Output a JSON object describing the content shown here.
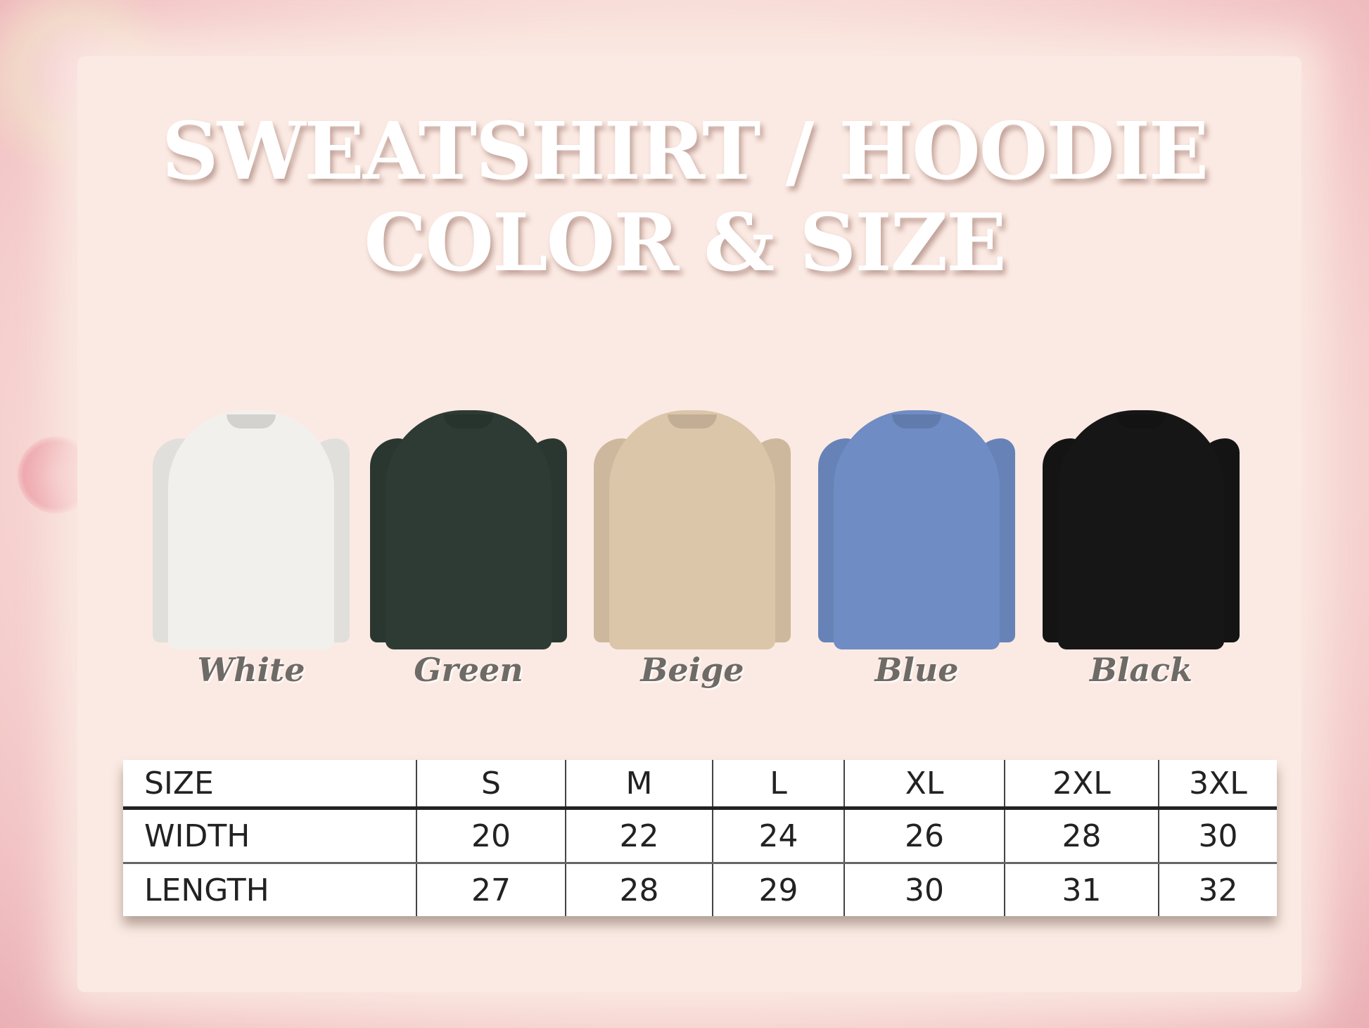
{
  "title": {
    "line1": "SWEATSHIRT / HOODIE",
    "line2": "COLOR & SIZE"
  },
  "colors": [
    {
      "name": "White",
      "hex": "#f1f0ec"
    },
    {
      "name": "Green",
      "hex": "#2d3b34"
    },
    {
      "name": "Beige",
      "hex": "#dcc6aa"
    },
    {
      "name": "Blue",
      "hex": "#6f8cc4"
    },
    {
      "name": "Black",
      "hex": "#161616"
    }
  ],
  "size_table": {
    "header": [
      "SIZE",
      "S",
      "M",
      "L",
      "XL",
      "2XL",
      "3XL"
    ],
    "rows": [
      [
        "WIDTH",
        "20",
        "22",
        "24",
        "26",
        "28",
        "30"
      ],
      [
        "LENGTH",
        "27",
        "28",
        "29",
        "30",
        "31",
        "32"
      ]
    ]
  }
}
